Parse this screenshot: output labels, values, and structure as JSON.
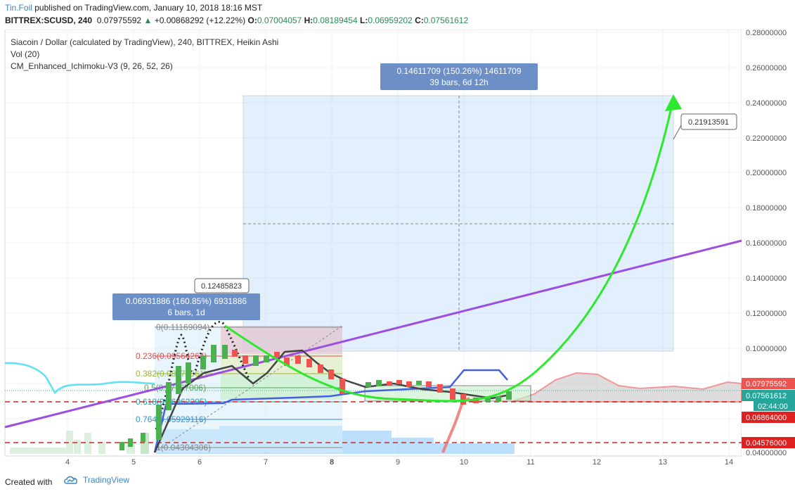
{
  "header": {
    "author": "Tin.Foil",
    "published": "published on TradingView.com, January 10, 2018 18:16 MST",
    "symbol": "BITTREX:SCUSD, 240",
    "last_price": "0.07975592",
    "up_arrow": "▲",
    "change": "+0.00868292 (+12.22%)",
    "open_label": "O:",
    "open": "0.07004057",
    "high_label": "H:",
    "high": "0.08189454",
    "low_label": "L:",
    "low": "0.06959202",
    "close_label": "C:",
    "close": "0.07561612"
  },
  "legend": {
    "title": "Siacoin / Dollar (calculated by TradingView), 240, BITTREX, Heikin Ashi",
    "vol": "Vol (20)",
    "ichimoku": "CM_Enhanced_Ichimoku-V3 (9, 26, 52, 26)"
  },
  "y_axis": {
    "ticks": [
      "0.28000000",
      "0.26000000",
      "0.24000000",
      "0.22000000",
      "0.20000000",
      "0.18000000",
      "0.16000000",
      "0.14000000",
      "0.12000000",
      "0.10000000",
      "0.04000000"
    ],
    "markers": [
      {
        "text": "0.07975592",
        "color": "#ef5350"
      },
      {
        "text": "0.07561612",
        "color": "#26a69a"
      },
      {
        "text": "02:44:00",
        "color": "#26a69a"
      },
      {
        "text": "0.06864000",
        "color": "#e01f1f"
      },
      {
        "text": "0.04576000",
        "color": "#e01f1f"
      }
    ]
  },
  "x_axis": {
    "ticks": [
      "4",
      "5",
      "6",
      "7",
      "8",
      "9",
      "10",
      "11",
      "12",
      "13",
      "14"
    ]
  },
  "annotations": {
    "big_measure": {
      "line1": "0.14611709 (150.26%) 14611709",
      "line2": "39 bars, 6d 12h"
    },
    "small_measure": {
      "line1": "0.06931886 (160.85%) 6931886",
      "line2": "6 bars, 1d"
    },
    "target_label": "0.21913591",
    "small_target_label": "0.12485823"
  },
  "fib": {
    "levels": [
      {
        "text": "0(0.11169094)",
        "color": "#888888"
      },
      {
        "text": "0.236(0.09564264)",
        "color": "#e05050"
      },
      {
        "text": "0.382(0.08571561)",
        "color": "#9ab43a"
      },
      {
        "text": "0.5(0.07767006)",
        "color": "#5aa65a"
      },
      {
        "text": "0.618(0.06962295)",
        "color": "#2e9aa0"
      },
      {
        "text": "0.764(0.05929116)",
        "color": "#3a8fd0"
      },
      {
        "text": "1(0.04304306)",
        "color": "#888888"
      }
    ]
  },
  "footer": {
    "created": "Created with",
    "brand": "TradingView"
  }
}
